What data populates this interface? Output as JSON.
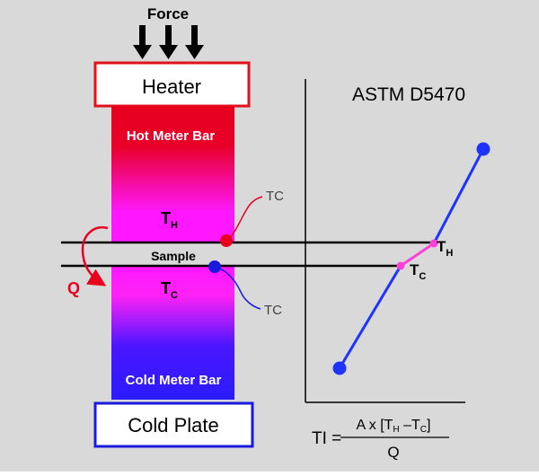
{
  "labels": {
    "force": "Force",
    "heater": "Heater",
    "hot_meter_bar": "Hot Meter Bar",
    "cold_meter_bar": "Cold Meter Bar",
    "cold_plate": "Cold Plate",
    "sample": "Sample",
    "th_main": "T",
    "th_sub": "H",
    "tc_main": "T",
    "tc_sub": "C",
    "tc_probe_top": "TC",
    "tc_probe_bottom": "TC",
    "q": "Q",
    "standard": "ASTM D5470"
  },
  "formula": {
    "lhs": "TI =",
    "numerator_prefix": "A x [T",
    "numerator_h": "H",
    "numerator_minus": " –T",
    "numerator_c": "C",
    "numerator_suffix": "]",
    "denominator": "Q"
  },
  "colors": {
    "background": "#d9d9d9",
    "heater_border": "#e0111d",
    "cold_plate_border": "#1a1adf",
    "hot_red": "#e8001e",
    "magenta": "#ff18ff",
    "blue": "#2a1bff",
    "line_blue": "#1f33ff",
    "pink": "#ff3fd8"
  }
}
